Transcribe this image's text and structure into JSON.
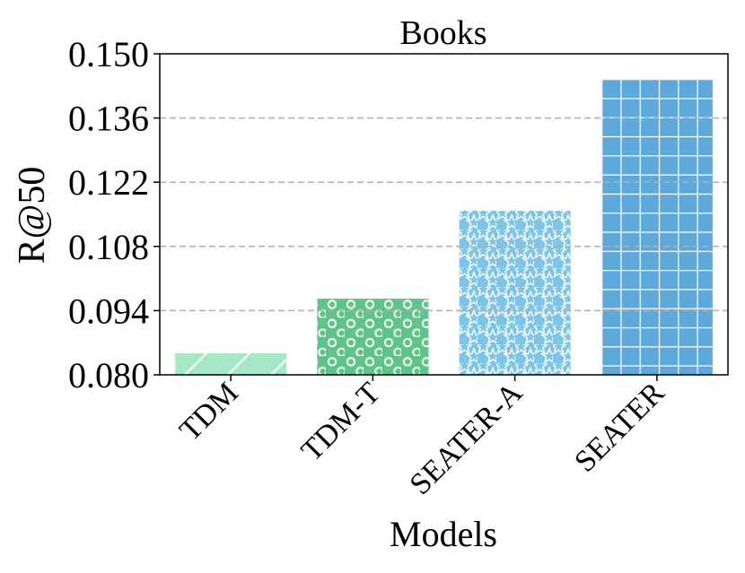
{
  "chart_data": {
    "type": "bar",
    "title": "Books",
    "xlabel": "Models",
    "ylabel": "R@50",
    "categories": [
      "TDM",
      "TDM-T",
      "SEATER-A",
      "SEATER"
    ],
    "values": [
      0.0847,
      0.0966,
      0.1158,
      0.1445
    ],
    "ylim": [
      0.08,
      0.15
    ],
    "yticks": [
      "0.080",
      "0.094",
      "0.108",
      "0.122",
      "0.136",
      "0.150"
    ],
    "ytick_values": [
      0.08,
      0.094,
      0.108,
      0.122,
      0.136,
      0.15
    ],
    "grid": {
      "axis": "y",
      "style": "dashed"
    },
    "legend": null,
    "bar_colors": [
      "#a6e9c7",
      "#5ec588",
      "#7cc5e6",
      "#5ea9db"
    ],
    "bar_patterns": [
      "diagonal-hatch",
      "circles",
      "stars",
      "grid"
    ]
  }
}
